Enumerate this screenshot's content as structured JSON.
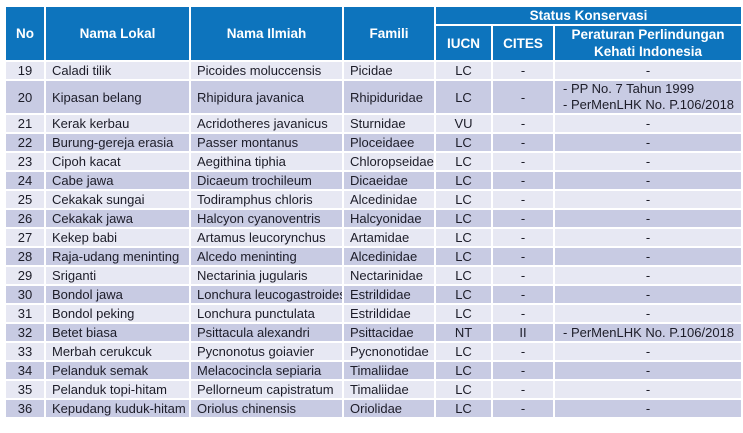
{
  "colors": {
    "header_bg": "#0d74bd",
    "row_light": "#e7e8f3",
    "row_dark": "#c8cbe3",
    "header_text": "#ffffff",
    "body_text": "#1c1c28"
  },
  "table": {
    "header": {
      "no": "No",
      "nama_lokal": "Nama Lokal",
      "nama_ilmiah": "Nama Ilmiah",
      "famili": "Famili",
      "status_konservasi": "Status Konservasi",
      "iucn": "IUCN",
      "cites": "CITES",
      "peraturan": "Peraturan Perlindungan Kehati Indonesia"
    },
    "rows": [
      {
        "no": "19",
        "nama_lokal": "Caladi tilik",
        "nama_ilmiah": "Picoides moluccensis",
        "famili": "Picidae",
        "iucn": "LC",
        "cites": "-",
        "peraturan": [
          "-"
        ]
      },
      {
        "no": "20",
        "nama_lokal": "Kipasan belang",
        "nama_ilmiah": "Rhipidura javanica",
        "famili": "Rhipiduridae",
        "iucn": "LC",
        "cites": "-",
        "peraturan": [
          "- PP No. 7 Tahun 1999",
          "- PerMenLHK No. P.106/2018"
        ]
      },
      {
        "no": "21",
        "nama_lokal": "Kerak kerbau",
        "nama_ilmiah": "Acridotheres javanicus",
        "famili": "Sturnidae",
        "iucn": "VU",
        "cites": "-",
        "peraturan": [
          "-"
        ]
      },
      {
        "no": "22",
        "nama_lokal": "Burung-gereja erasia",
        "nama_ilmiah": "Passer montanus",
        "famili": "Ploceidaee",
        "iucn": "LC",
        "cites": "-",
        "peraturan": [
          "-"
        ]
      },
      {
        "no": "23",
        "nama_lokal": "Cipoh kacat",
        "nama_ilmiah": "Aegithina tiphia",
        "famili": "Chloropseidae",
        "iucn": "LC",
        "cites": "-",
        "peraturan": [
          "-"
        ]
      },
      {
        "no": "24",
        "nama_lokal": "Cabe jawa",
        "nama_ilmiah": "Dicaeum trochileum",
        "famili": "Dicaeidae",
        "iucn": "LC",
        "cites": "-",
        "peraturan": [
          "-"
        ]
      },
      {
        "no": "25",
        "nama_lokal": "Cekakak sungai",
        "nama_ilmiah": "Todiramphus chloris",
        "famili": "Alcedinidae",
        "iucn": "LC",
        "cites": "-",
        "peraturan": [
          "-"
        ]
      },
      {
        "no": "26",
        "nama_lokal": "Cekakak jawa",
        "nama_ilmiah": "Halcyon cyanoventris",
        "famili": "Halcyonidae",
        "iucn": "LC",
        "cites": "-",
        "peraturan": [
          "-"
        ]
      },
      {
        "no": "27",
        "nama_lokal": "Kekep babi",
        "nama_ilmiah": "Artamus leucorynchus",
        "famili": "Artamidae",
        "iucn": "LC",
        "cites": "-",
        "peraturan": [
          "-"
        ]
      },
      {
        "no": "28",
        "nama_lokal": "Raja-udang meninting",
        "nama_ilmiah": "Alcedo meninting",
        "famili": "Alcedinidae",
        "iucn": "LC",
        "cites": "-",
        "peraturan": [
          "-"
        ]
      },
      {
        "no": "29",
        "nama_lokal": "Sriganti",
        "nama_ilmiah": "Nectarinia jugularis",
        "famili": "Nectarinidae",
        "iucn": "LC",
        "cites": "-",
        "peraturan": [
          "-"
        ]
      },
      {
        "no": "30",
        "nama_lokal": "Bondol jawa",
        "nama_ilmiah": "Lonchura leucogastroides",
        "famili": "Estrildidae",
        "iucn": "LC",
        "cites": "-",
        "peraturan": [
          "-"
        ]
      },
      {
        "no": "31",
        "nama_lokal": "Bondol peking",
        "nama_ilmiah": "Lonchura punctulata",
        "famili": "Estrildidae",
        "iucn": "LC",
        "cites": "-",
        "peraturan": [
          "-"
        ]
      },
      {
        "no": "32",
        "nama_lokal": "Betet biasa",
        "nama_ilmiah": "Psittacula alexandri",
        "famili": "Psittacidae",
        "iucn": "NT",
        "cites": "II",
        "peraturan": [
          "- PerMenLHK No. P.106/2018"
        ]
      },
      {
        "no": "33",
        "nama_lokal": "Merbah cerukcuk",
        "nama_ilmiah": "Pycnonotus goiavier",
        "famili": "Pycnonotidae",
        "iucn": "LC",
        "cites": "-",
        "peraturan": [
          "-"
        ]
      },
      {
        "no": "34",
        "nama_lokal": "Pelanduk semak",
        "nama_ilmiah": "Melacocincla sepiaria",
        "famili": "Timaliidae",
        "iucn": "LC",
        "cites": "-",
        "peraturan": [
          "-"
        ]
      },
      {
        "no": "35",
        "nama_lokal": "Pelanduk topi-hitam",
        "nama_ilmiah": "Pellorneum capistratum",
        "famili": "Timaliidae",
        "iucn": "LC",
        "cites": "-",
        "peraturan": [
          "-"
        ]
      },
      {
        "no": "36",
        "nama_lokal": "Kepudang kuduk-hitam",
        "nama_ilmiah": "Oriolus chinensis",
        "famili": "Oriolidae",
        "iucn": "LC",
        "cites": "-",
        "peraturan": [
          "-"
        ]
      }
    ]
  }
}
